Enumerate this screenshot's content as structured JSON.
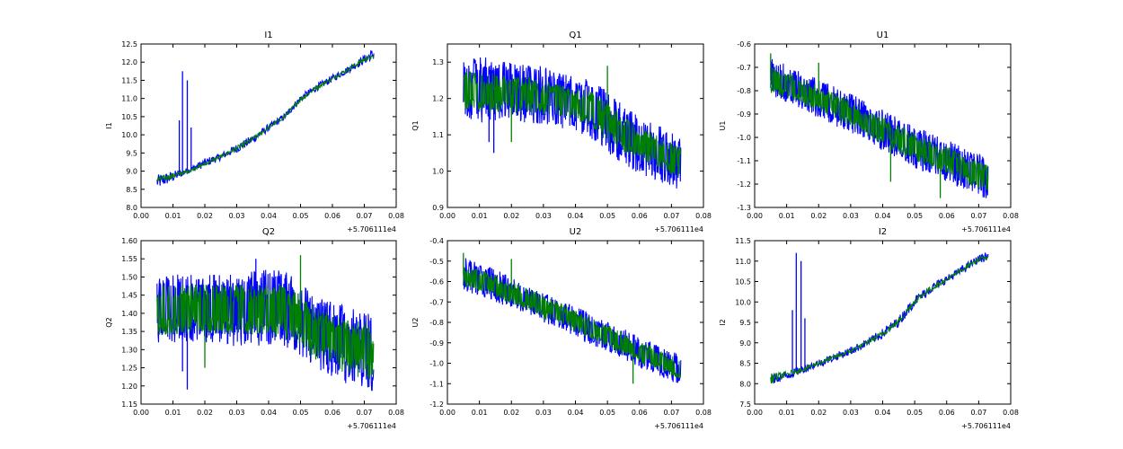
{
  "chart_data": [
    {
      "type": "line",
      "title": "I1",
      "xlabel": "",
      "ylabel": "I1",
      "x_offset_label": "+5.706111e4",
      "xlim": [
        0.0,
        0.08
      ],
      "ylim": [
        8.0,
        12.5
      ],
      "x_ticks": [
        "0.00",
        "0.01",
        "0.02",
        "0.03",
        "0.04",
        "0.05",
        "0.06",
        "0.07",
        "0.08"
      ],
      "y_ticks": [
        "8.0",
        "8.5",
        "9.0",
        "9.5",
        "10.0",
        "10.5",
        "11.0",
        "11.5",
        "12.0",
        "12.5"
      ],
      "noise": "narrow",
      "series": [
        {
          "color": "#0000ff",
          "x": [
            0.005,
            0.01,
            0.015,
            0.02,
            0.025,
            0.03,
            0.035,
            0.04,
            0.045,
            0.05,
            0.055,
            0.06,
            0.065,
            0.07,
            0.073
          ],
          "lo": [
            8.5,
            8.7,
            8.95,
            9.1,
            9.3,
            9.5,
            9.75,
            10.1,
            10.4,
            10.9,
            11.2,
            11.45,
            11.7,
            11.95,
            12.05
          ],
          "hi": [
            8.9,
            9.0,
            9.1,
            9.35,
            9.5,
            9.75,
            10.0,
            10.3,
            10.6,
            11.1,
            11.4,
            11.65,
            11.9,
            12.2,
            12.4
          ],
          "spikes": [
            {
              "x": 0.012,
              "y": 10.4
            },
            {
              "x": 0.013,
              "y": 11.75
            },
            {
              "x": 0.0145,
              "y": 11.5
            },
            {
              "x": 0.0157,
              "y": 10.2
            }
          ]
        },
        {
          "color": "#008000",
          "x": [
            0.005,
            0.01,
            0.015,
            0.02,
            0.025,
            0.03,
            0.035,
            0.04,
            0.045,
            0.05,
            0.055,
            0.06,
            0.065,
            0.07,
            0.073
          ],
          "lo": [
            8.65,
            8.8,
            8.95,
            9.15,
            9.35,
            9.55,
            9.8,
            10.15,
            10.45,
            10.9,
            11.25,
            11.5,
            11.75,
            12.0,
            12.1
          ],
          "hi": [
            8.85,
            8.95,
            9.05,
            9.25,
            9.45,
            9.7,
            9.95,
            10.25,
            10.55,
            11.05,
            11.35,
            11.6,
            11.85,
            12.15,
            12.2
          ],
          "spikes": []
        }
      ]
    },
    {
      "type": "line",
      "title": "Q1",
      "xlabel": "",
      "ylabel": "Q1",
      "x_offset_label": "+5.706111e4",
      "xlim": [
        0.0,
        0.08
      ],
      "ylim": [
        0.9,
        1.35
      ],
      "x_ticks": [
        "0.00",
        "0.01",
        "0.02",
        "0.03",
        "0.04",
        "0.05",
        "0.06",
        "0.07",
        "0.08"
      ],
      "y_ticks": [
        "0.9",
        "1.0",
        "1.1",
        "1.2",
        "1.3"
      ],
      "noise": "wide",
      "series": [
        {
          "color": "#0000ff",
          "x": [
            0.005,
            0.01,
            0.015,
            0.02,
            0.025,
            0.03,
            0.035,
            0.04,
            0.045,
            0.05,
            0.055,
            0.06,
            0.065,
            0.07,
            0.073
          ],
          "lo": [
            1.15,
            1.13,
            1.14,
            1.14,
            1.13,
            1.13,
            1.12,
            1.11,
            1.09,
            1.05,
            1.02,
            0.99,
            0.97,
            0.95,
            0.94
          ],
          "hi": [
            1.3,
            1.32,
            1.31,
            1.3,
            1.29,
            1.29,
            1.27,
            1.26,
            1.25,
            1.22,
            1.18,
            1.15,
            1.13,
            1.11,
            1.1
          ],
          "spikes": [
            {
              "x": 0.013,
              "y": 1.08
            },
            {
              "x": 0.0145,
              "y": 1.05
            }
          ]
        },
        {
          "color": "#008000",
          "x": [
            0.005,
            0.01,
            0.015,
            0.02,
            0.025,
            0.03,
            0.035,
            0.04,
            0.045,
            0.05,
            0.055,
            0.06,
            0.065,
            0.07,
            0.073
          ],
          "lo": [
            1.17,
            1.16,
            1.16,
            1.16,
            1.16,
            1.15,
            1.15,
            1.14,
            1.11,
            1.07,
            1.05,
            1.03,
            1.01,
            0.99,
            0.98
          ],
          "hi": [
            1.28,
            1.27,
            1.27,
            1.26,
            1.26,
            1.25,
            1.24,
            1.23,
            1.22,
            1.19,
            1.15,
            1.12,
            1.1,
            1.08,
            1.07
          ],
          "spikes": [
            {
              "x": 0.02,
              "y": 1.08
            },
            {
              "x": 0.05,
              "y": 1.29
            }
          ]
        }
      ]
    },
    {
      "type": "line",
      "title": "U1",
      "xlabel": "",
      "ylabel": "U1",
      "x_offset_label": "+5.706111e4",
      "xlim": [
        0.0,
        0.08
      ],
      "ylim": [
        -1.3,
        -0.6
      ],
      "x_ticks": [
        "0.00",
        "0.01",
        "0.02",
        "0.03",
        "0.04",
        "0.05",
        "0.06",
        "0.07",
        "0.08"
      ],
      "y_ticks": [
        "-1.3",
        "-1.2",
        "-1.1",
        "-1.0",
        "-0.9",
        "-0.8",
        "-0.7",
        "-0.6"
      ],
      "noise": "wide",
      "series": [
        {
          "color": "#0000ff",
          "x": [
            0.005,
            0.01,
            0.015,
            0.02,
            0.025,
            0.03,
            0.035,
            0.04,
            0.045,
            0.05,
            0.055,
            0.06,
            0.065,
            0.07,
            0.073
          ],
          "lo": [
            -0.83,
            -0.85,
            -0.88,
            -0.92,
            -0.95,
            -0.98,
            -1.02,
            -1.06,
            -1.1,
            -1.13,
            -1.16,
            -1.19,
            -1.22,
            -1.25,
            -1.27
          ],
          "hi": [
            -0.66,
            -0.69,
            -0.72,
            -0.75,
            -0.78,
            -0.81,
            -0.85,
            -0.88,
            -0.92,
            -0.95,
            -0.98,
            -1.01,
            -1.04,
            -1.07,
            -1.09
          ],
          "spikes": []
        },
        {
          "color": "#008000",
          "x": [
            0.005,
            0.01,
            0.015,
            0.02,
            0.025,
            0.03,
            0.035,
            0.04,
            0.045,
            0.05,
            0.055,
            0.06,
            0.065,
            0.07,
            0.073
          ],
          "lo": [
            -0.81,
            -0.83,
            -0.86,
            -0.89,
            -0.92,
            -0.95,
            -0.99,
            -1.03,
            -1.07,
            -1.1,
            -1.13,
            -1.16,
            -1.19,
            -1.22,
            -1.24
          ],
          "hi": [
            -0.7,
            -0.72,
            -0.75,
            -0.78,
            -0.81,
            -0.84,
            -0.88,
            -0.91,
            -0.95,
            -0.98,
            -1.01,
            -1.04,
            -1.07,
            -1.1,
            -1.12
          ],
          "spikes": [
            {
              "x": 0.005,
              "y": -0.64
            },
            {
              "x": 0.02,
              "y": -0.68
            },
            {
              "x": 0.0425,
              "y": -1.19
            },
            {
              "x": 0.058,
              "y": -1.26
            }
          ]
        }
      ]
    },
    {
      "type": "line",
      "title": "Q2",
      "xlabel": "",
      "ylabel": "Q2",
      "x_offset_label": "+5.706111e4",
      "xlim": [
        0.0,
        0.08
      ],
      "ylim": [
        1.15,
        1.6
      ],
      "x_ticks": [
        "0.00",
        "0.01",
        "0.02",
        "0.03",
        "0.04",
        "0.05",
        "0.06",
        "0.07",
        "0.08"
      ],
      "y_ticks": [
        "1.15",
        "1.20",
        "1.25",
        "1.30",
        "1.35",
        "1.40",
        "1.45",
        "1.50",
        "1.55",
        "1.60"
      ],
      "noise": "wide",
      "series": [
        {
          "color": "#0000ff",
          "x": [
            0.005,
            0.01,
            0.015,
            0.02,
            0.025,
            0.03,
            0.035,
            0.04,
            0.045,
            0.05,
            0.055,
            0.06,
            0.065,
            0.07,
            0.073
          ],
          "lo": [
            1.32,
            1.32,
            1.32,
            1.32,
            1.31,
            1.31,
            1.31,
            1.31,
            1.31,
            1.28,
            1.25,
            1.22,
            1.2,
            1.19,
            1.18
          ],
          "hi": [
            1.5,
            1.51,
            1.51,
            1.51,
            1.51,
            1.51,
            1.52,
            1.52,
            1.52,
            1.48,
            1.45,
            1.43,
            1.42,
            1.41,
            1.4
          ],
          "spikes": [
            {
              "x": 0.013,
              "y": 1.24
            },
            {
              "x": 0.0145,
              "y": 1.19
            },
            {
              "x": 0.036,
              "y": 1.55
            }
          ]
        },
        {
          "color": "#008000",
          "x": [
            0.005,
            0.01,
            0.015,
            0.02,
            0.025,
            0.03,
            0.035,
            0.04,
            0.045,
            0.05,
            0.055,
            0.06,
            0.065,
            0.07,
            0.073
          ],
          "lo": [
            1.34,
            1.34,
            1.34,
            1.34,
            1.34,
            1.34,
            1.34,
            1.34,
            1.33,
            1.3,
            1.27,
            1.25,
            1.23,
            1.22,
            1.21
          ],
          "hi": [
            1.48,
            1.48,
            1.48,
            1.48,
            1.48,
            1.48,
            1.48,
            1.48,
            1.48,
            1.45,
            1.42,
            1.4,
            1.39,
            1.38,
            1.37
          ],
          "spikes": [
            {
              "x": 0.02,
              "y": 1.25
            },
            {
              "x": 0.05,
              "y": 1.56
            }
          ]
        }
      ]
    },
    {
      "type": "line",
      "title": "U2",
      "xlabel": "",
      "ylabel": "U2",
      "x_offset_label": "+5.706111e4",
      "xlim": [
        0.0,
        0.08
      ],
      "ylim": [
        -1.2,
        -0.4
      ],
      "x_ticks": [
        "0.00",
        "0.01",
        "0.02",
        "0.03",
        "0.04",
        "0.05",
        "0.06",
        "0.07",
        "0.08"
      ],
      "y_ticks": [
        "-1.2",
        "-1.1",
        "-1.0",
        "-0.9",
        "-0.8",
        "-0.7",
        "-0.6",
        "-0.5",
        "-0.4"
      ],
      "noise": "wide",
      "series": [
        {
          "color": "#0000ff",
          "x": [
            0.005,
            0.01,
            0.015,
            0.02,
            0.025,
            0.03,
            0.035,
            0.04,
            0.045,
            0.05,
            0.055,
            0.06,
            0.065,
            0.07,
            0.073
          ],
          "lo": [
            -0.65,
            -0.67,
            -0.7,
            -0.73,
            -0.76,
            -0.8,
            -0.83,
            -0.87,
            -0.91,
            -0.94,
            -0.98,
            -1.02,
            -1.05,
            -1.09,
            -1.12
          ],
          "hi": [
            -0.48,
            -0.51,
            -0.54,
            -0.58,
            -0.62,
            -0.65,
            -0.69,
            -0.72,
            -0.76,
            -0.8,
            -0.83,
            -0.87,
            -0.9,
            -0.94,
            -0.96
          ],
          "spikes": []
        },
        {
          "color": "#008000",
          "x": [
            0.005,
            0.01,
            0.015,
            0.02,
            0.025,
            0.03,
            0.035,
            0.04,
            0.045,
            0.05,
            0.055,
            0.06,
            0.065,
            0.07,
            0.073
          ],
          "lo": [
            -0.62,
            -0.65,
            -0.68,
            -0.71,
            -0.74,
            -0.78,
            -0.81,
            -0.85,
            -0.88,
            -0.92,
            -0.96,
            -1.0,
            -1.03,
            -1.06,
            -1.09
          ],
          "hi": [
            -0.52,
            -0.54,
            -0.57,
            -0.6,
            -0.63,
            -0.67,
            -0.7,
            -0.74,
            -0.78,
            -0.81,
            -0.85,
            -0.89,
            -0.92,
            -0.96,
            -0.98
          ],
          "spikes": [
            {
              "x": 0.005,
              "y": -0.46
            },
            {
              "x": 0.02,
              "y": -0.49
            },
            {
              "x": 0.058,
              "y": -1.1
            }
          ]
        }
      ]
    },
    {
      "type": "line",
      "title": "I2",
      "xlabel": "",
      "ylabel": "I2",
      "x_offset_label": "+5.706111e4",
      "xlim": [
        0.0,
        0.08
      ],
      "ylim": [
        7.5,
        11.5
      ],
      "x_ticks": [
        "0.00",
        "0.01",
        "0.02",
        "0.03",
        "0.04",
        "0.05",
        "0.06",
        "0.07",
        "0.08"
      ],
      "y_ticks": [
        "7.5",
        "8.0",
        "8.5",
        "9.0",
        "9.5",
        "10.0",
        "10.5",
        "11.0",
        "11.5"
      ],
      "noise": "narrow",
      "series": [
        {
          "color": "#0000ff",
          "x": [
            0.005,
            0.01,
            0.015,
            0.02,
            0.025,
            0.03,
            0.035,
            0.04,
            0.045,
            0.05,
            0.055,
            0.06,
            0.065,
            0.07,
            0.073
          ],
          "lo": [
            7.95,
            8.1,
            8.25,
            8.4,
            8.55,
            8.7,
            8.9,
            9.1,
            9.4,
            9.9,
            10.2,
            10.45,
            10.7,
            10.95,
            11.0
          ],
          "hi": [
            8.25,
            8.3,
            8.45,
            8.6,
            8.75,
            8.9,
            9.1,
            9.35,
            9.65,
            10.15,
            10.45,
            10.65,
            10.9,
            11.15,
            11.25
          ],
          "spikes": [
            {
              "x": 0.0118,
              "y": 9.8
            },
            {
              "x": 0.013,
              "y": 11.2
            },
            {
              "x": 0.0145,
              "y": 11.0
            },
            {
              "x": 0.0157,
              "y": 9.6
            }
          ]
        },
        {
          "color": "#008000",
          "x": [
            0.005,
            0.01,
            0.015,
            0.02,
            0.025,
            0.03,
            0.035,
            0.04,
            0.045,
            0.05,
            0.055,
            0.06,
            0.065,
            0.07,
            0.073
          ],
          "lo": [
            8.0,
            8.15,
            8.3,
            8.45,
            8.6,
            8.75,
            8.95,
            9.15,
            9.45,
            9.95,
            10.25,
            10.5,
            10.75,
            11.0,
            11.05
          ],
          "hi": [
            8.25,
            8.3,
            8.4,
            8.55,
            8.7,
            8.85,
            9.05,
            9.3,
            9.6,
            10.1,
            10.4,
            10.6,
            10.85,
            11.1,
            11.15
          ],
          "spikes": []
        }
      ]
    }
  ]
}
